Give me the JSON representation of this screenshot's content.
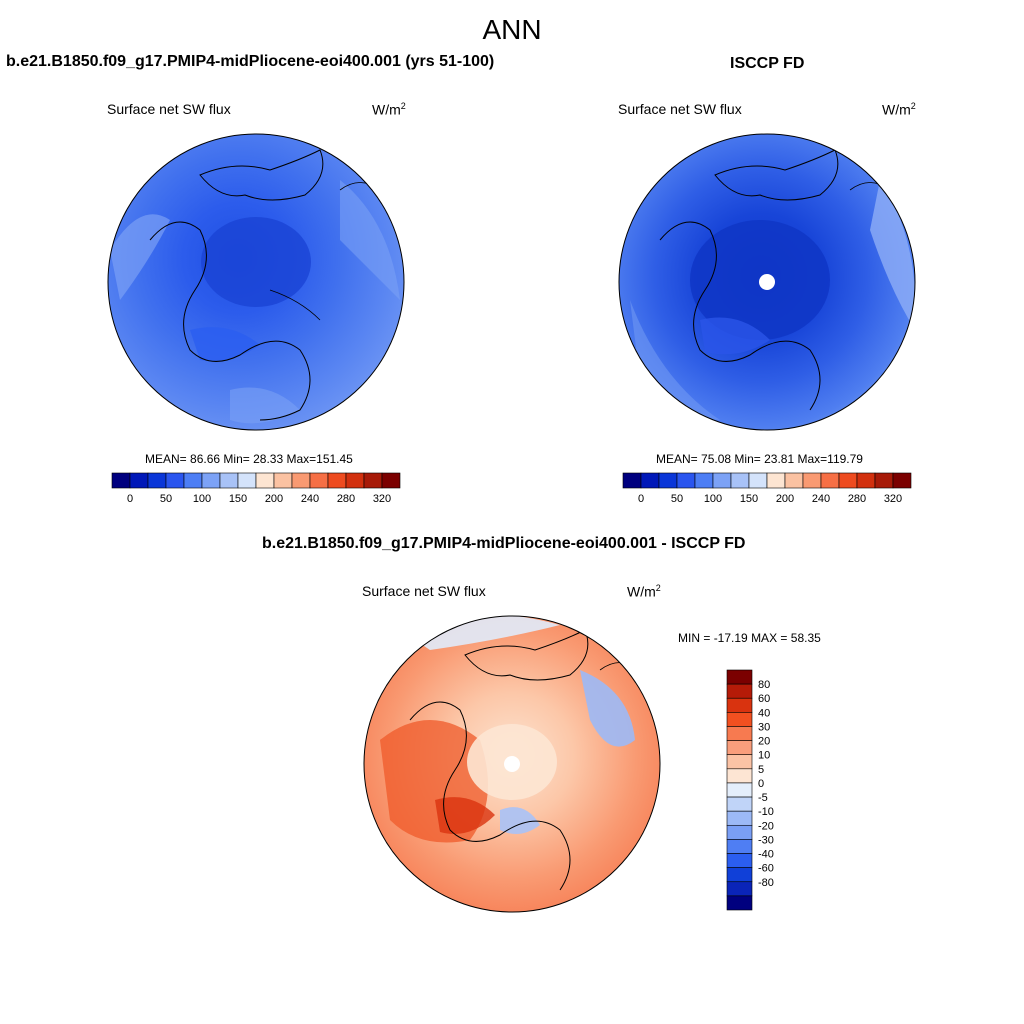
{
  "figure": {
    "title": "ANN",
    "top_left_case": "b.e21.B1850.f09_g17.PMIP4-midPliocene-eoi400.001 (yrs 51-100)",
    "top_right_case": "ISCCP FD",
    "bottom_case": "b.e21.B1850.f09_g17.PMIP4-midPliocene-eoi400.001 - ISCCP FD"
  },
  "chart_data": [
    {
      "type": "heatmap",
      "projection": "north-polar-stereographic",
      "variable": "Surface net SW flux",
      "units": "W/m",
      "units_sup": "2",
      "stats": {
        "mean_label": "MEAN=",
        "mean": "86.66",
        "min_label": "Min=",
        "min": "28.33",
        "max_label": "Max=",
        "max": "151.45"
      },
      "colorbar": {
        "orientation": "horizontal",
        "colors": [
          "#00007f",
          "#0018b8",
          "#0a36d8",
          "#2a55ef",
          "#4d7ef5",
          "#7ca2f6",
          "#a8c2f7",
          "#d4e3fb",
          "#fde5d2",
          "#fbc2a2",
          "#f99a72",
          "#f66f45",
          "#ee4b1f",
          "#d2300e",
          "#a71a08",
          "#7b0000"
        ],
        "ticks": [
          "0",
          "50",
          "100",
          "150",
          "200",
          "240",
          "280",
          "320"
        ]
      }
    },
    {
      "type": "heatmap",
      "projection": "north-polar-stereographic",
      "variable": "Surface net SW flux",
      "units": "W/m",
      "units_sup": "2",
      "stats": {
        "mean_label": "MEAN=",
        "mean": "75.08",
        "min_label": "Min=",
        "min": "23.81",
        "max_label": "Max=",
        "max": "119.79"
      },
      "colorbar": {
        "orientation": "horizontal",
        "colors": [
          "#00007f",
          "#0018b8",
          "#0a36d8",
          "#2a55ef",
          "#4d7ef5",
          "#7ca2f6",
          "#a8c2f7",
          "#d4e3fb",
          "#fde5d2",
          "#fbc2a2",
          "#f99a72",
          "#f66f45",
          "#ee4b1f",
          "#d2300e",
          "#a71a08",
          "#7b0000"
        ],
        "ticks": [
          "0",
          "50",
          "100",
          "150",
          "200",
          "240",
          "280",
          "320"
        ]
      }
    },
    {
      "type": "heatmap",
      "projection": "north-polar-stereographic",
      "variable": "Surface net SW flux",
      "units": "W/m",
      "units_sup": "2",
      "stats": {
        "min_label": "MIN =",
        "min": "-17.19",
        "max_label": "MAX =",
        "max": "58.35"
      },
      "colorbar": {
        "orientation": "vertical",
        "colors": [
          "#7b0000",
          "#b51b08",
          "#d9330f",
          "#f25020",
          "#f77a50",
          "#f99e7c",
          "#fbc3a5",
          "#fde5d3",
          "#e4eefb",
          "#c0d4f8",
          "#9cb9f6",
          "#7a9ff5",
          "#4f7ef3",
          "#2b5ef0",
          "#1040d8",
          "#0a24b8",
          "#00007f"
        ],
        "ticks": [
          "80",
          "60",
          "40",
          "30",
          "20",
          "10",
          "5",
          "0",
          "-5",
          "-10",
          "-20",
          "-30",
          "-40",
          "-60",
          "-80"
        ]
      }
    }
  ]
}
